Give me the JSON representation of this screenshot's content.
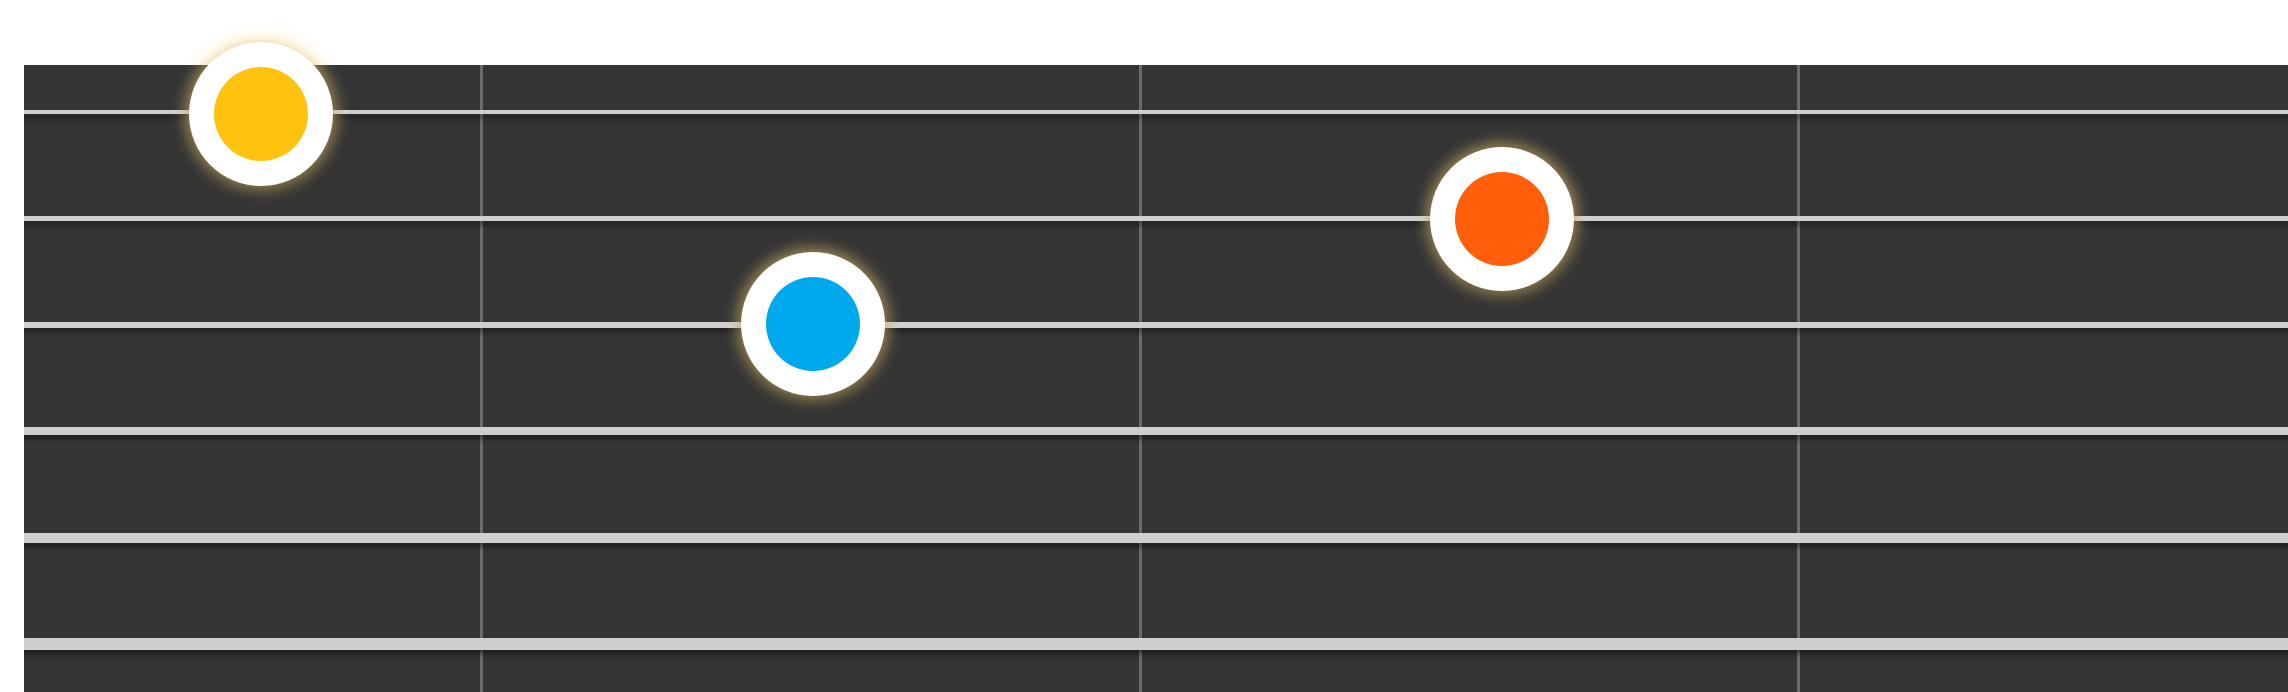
{
  "fretboard": {
    "background": "#353535",
    "string_color": "#cfcfcf",
    "fret_color": "#6c6c6c",
    "string_count": 6,
    "fret_count": 3
  },
  "markers": [
    {
      "name": "yellow",
      "color": "#ffc20e",
      "string": 1,
      "fret": 0
    },
    {
      "name": "blue",
      "color": "#00a8ec",
      "string": 3,
      "fret": 1
    },
    {
      "name": "orange",
      "color": "#ff5f0a",
      "string": 2,
      "fret": 2
    }
  ]
}
